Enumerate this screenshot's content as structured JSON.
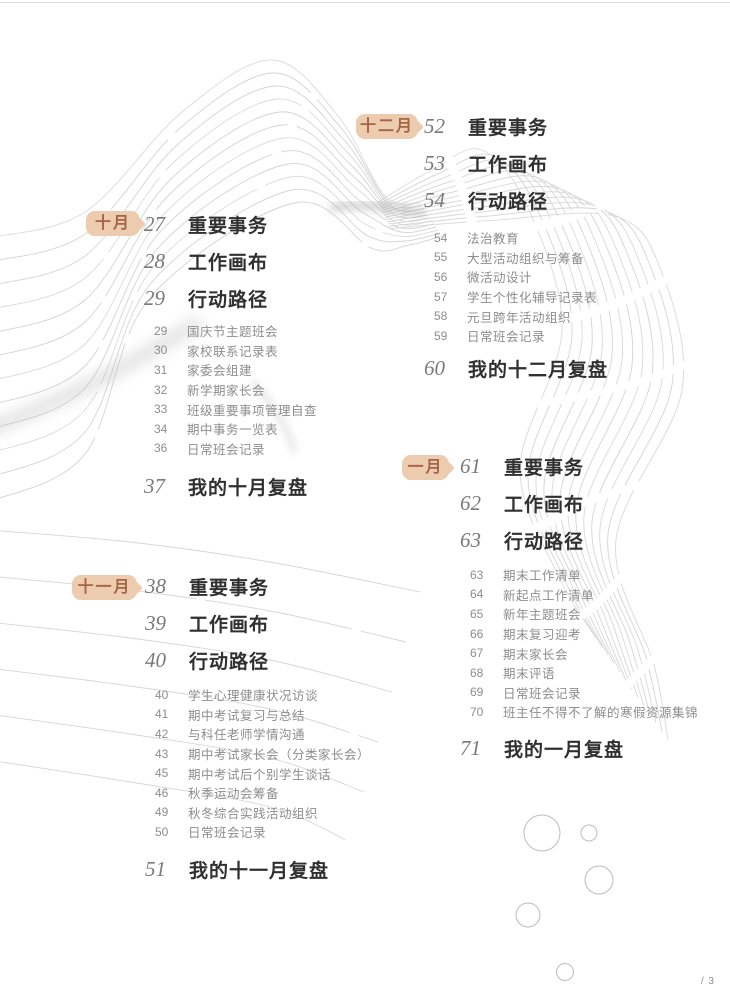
{
  "page": {
    "pagination": "/ 3"
  },
  "colors": {
    "badge_background": "#edcbae",
    "badge_text": "#a26547",
    "contour_line": "#d2d2d2",
    "title_text": "#303030",
    "muted_text": "#8d8d8d"
  },
  "months": [
    {
      "badge": "十月",
      "entries": [
        {
          "num": "27",
          "title": "重要事务"
        },
        {
          "num": "28",
          "title": "工作画布"
        },
        {
          "num": "29",
          "title": "行动路径"
        }
      ],
      "items": [
        {
          "num": "29",
          "text": "国庆节主题班会"
        },
        {
          "num": "30",
          "text": "家校联系记录表"
        },
        {
          "num": "31",
          "text": "家委会组建"
        },
        {
          "num": "32",
          "text": "新学期家长会"
        },
        {
          "num": "33",
          "text": "班级重要事项管理自查"
        },
        {
          "num": "34",
          "text": "期中事务一览表"
        },
        {
          "num": "36",
          "text": "日常班会记录"
        }
      ],
      "review": {
        "num": "37",
        "title": "我的十月复盘"
      }
    },
    {
      "badge": "十一月",
      "entries": [
        {
          "num": "38",
          "title": "重要事务"
        },
        {
          "num": "39",
          "title": "工作画布"
        },
        {
          "num": "40",
          "title": "行动路径"
        }
      ],
      "items": [
        {
          "num": "40",
          "text": "学生心理健康状况访谈"
        },
        {
          "num": "41",
          "text": "期中考试复习与总结"
        },
        {
          "num": "42",
          "text": "与科任老师学情沟通"
        },
        {
          "num": "43",
          "text": "期中考试家长会（分类家长会）"
        },
        {
          "num": "45",
          "text": "期中考试后个别学生谈话"
        },
        {
          "num": "46",
          "text": "秋季运动会筹备"
        },
        {
          "num": "49",
          "text": "秋冬综合实践活动组织"
        },
        {
          "num": "50",
          "text": "日常班会记录"
        }
      ],
      "review": {
        "num": "51",
        "title": "我的十一月复盘"
      }
    },
    {
      "badge": "十二月",
      "entries": [
        {
          "num": "52",
          "title": "重要事务"
        },
        {
          "num": "53",
          "title": "工作画布"
        },
        {
          "num": "54",
          "title": "行动路径"
        }
      ],
      "items": [
        {
          "num": "54",
          "text": "法治教育"
        },
        {
          "num": "55",
          "text": "大型活动组织与筹备"
        },
        {
          "num": "56",
          "text": "微活动设计"
        },
        {
          "num": "57",
          "text": "学生个性化辅导记录表"
        },
        {
          "num": "58",
          "text": "元旦跨年活动组织"
        },
        {
          "num": "59",
          "text": "日常班会记录"
        }
      ],
      "review": {
        "num": "60",
        "title": "我的十二月复盘"
      }
    },
    {
      "badge": "一月",
      "entries": [
        {
          "num": "61",
          "title": "重要事务"
        },
        {
          "num": "62",
          "title": "工作画布"
        },
        {
          "num": "63",
          "title": "行动路径"
        }
      ],
      "items": [
        {
          "num": "63",
          "text": "期末工作清单"
        },
        {
          "num": "64",
          "text": "新起点工作清单"
        },
        {
          "num": "65",
          "text": "新年主题班会"
        },
        {
          "num": "66",
          "text": "期末复习迎考"
        },
        {
          "num": "67",
          "text": "期末家长会"
        },
        {
          "num": "68",
          "text": "期末评语"
        },
        {
          "num": "69",
          "text": "日常班会记录"
        },
        {
          "num": "70",
          "text": "班主任不得不了解的寒假资源集锦"
        }
      ],
      "review": {
        "num": "71",
        "title": "我的一月复盘"
      }
    }
  ]
}
